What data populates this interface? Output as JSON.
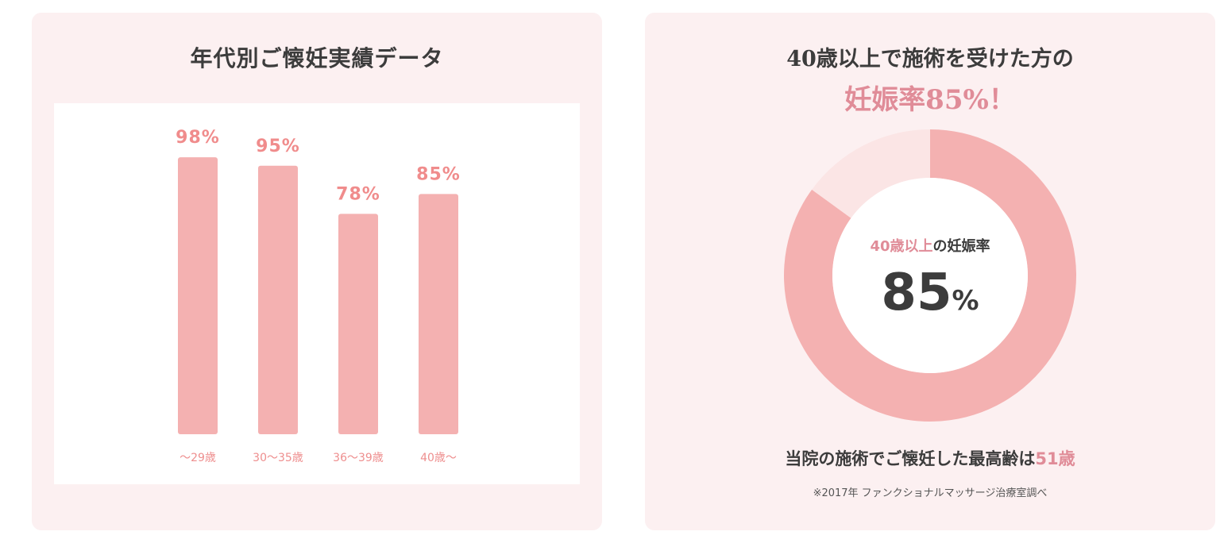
{
  "colors": {
    "card_bg": "#fcf0f1",
    "bar": "#f4b1b1",
    "bar_value": "#f08c8c",
    "category": "#ee8e8e",
    "donut_main": "#f4b1b1",
    "donut_rest": "#fbe5e5",
    "accent_text": "#e08c98",
    "text": "#3c3c3c"
  },
  "left": {
    "title": "年代別ご懐妊実績データ"
  },
  "chart_data": [
    {
      "type": "bar",
      "title": "年代別ご懐妊実績データ",
      "categories": [
        "～29歳",
        "30～35歳",
        "36～39歳",
        "40歳～"
      ],
      "values": [
        98,
        95,
        78,
        85
      ],
      "value_labels": [
        "98%",
        "95%",
        "78%",
        "85%"
      ],
      "xlabel": "",
      "ylabel": "",
      "ylim": [
        0,
        100
      ],
      "grid": false,
      "legend": "none"
    },
    {
      "type": "pie",
      "title": "40歳以上の妊娠率",
      "categories": [
        "妊娠",
        ""
      ],
      "values": [
        85,
        15
      ],
      "center_value": "85",
      "center_unit": "%",
      "donut": true
    }
  ],
  "right": {
    "title": "40歳以上で施術を受けた方の",
    "highlight": "妊娠率85%！",
    "donut_label_accent": "40歳以上",
    "donut_label_rest": "の妊娠率",
    "donut_value": "85",
    "donut_unit": "%",
    "oldest_text": "当院の施術でご懐妊した最高齢は",
    "oldest_age": "51歳",
    "footnote": "※2017年 ファンクショナルマッサージ治療室調べ"
  }
}
